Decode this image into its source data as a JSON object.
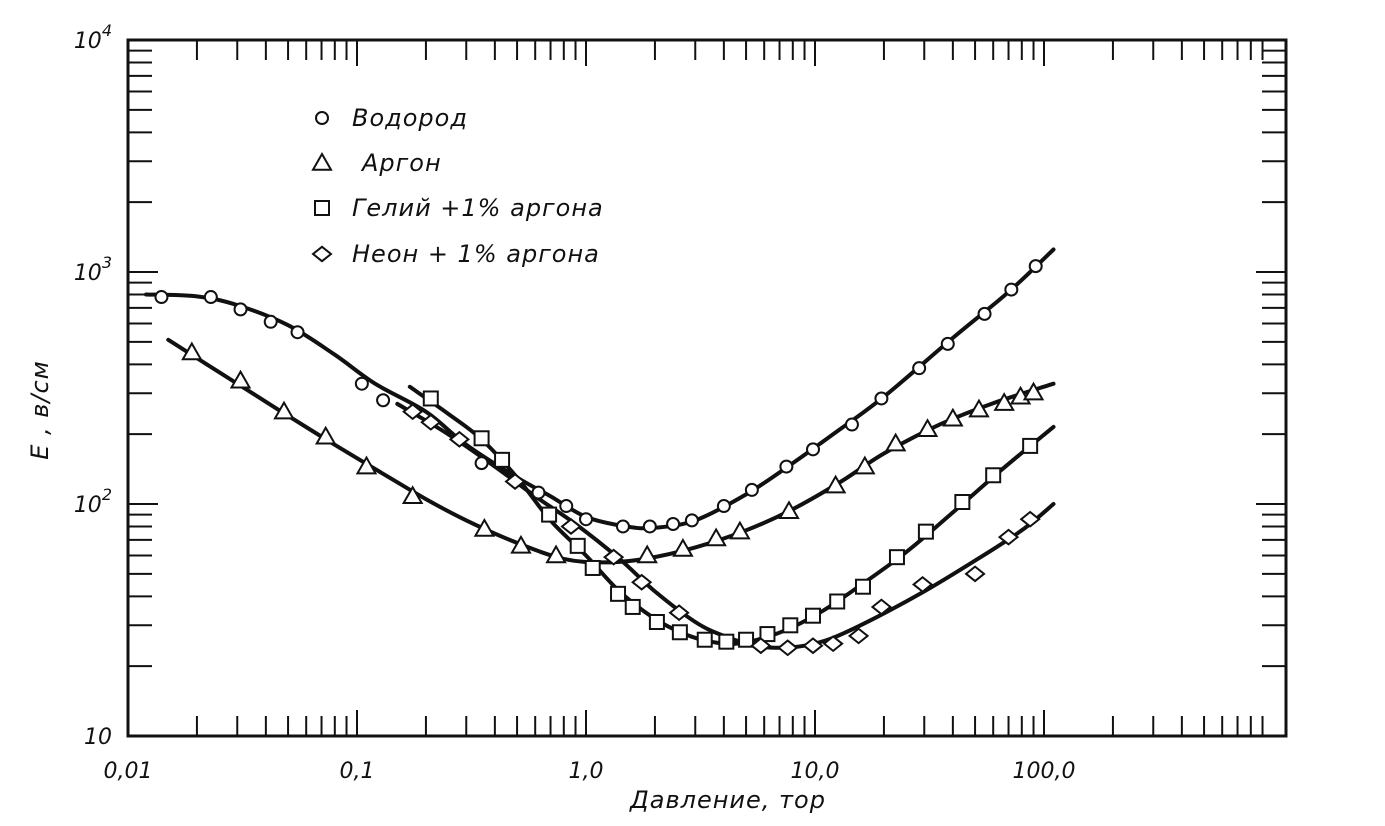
{
  "chart_data": {
    "type": "scatter",
    "title": "",
    "xlabel": "Давление, тор",
    "ylabel": "E , в/см",
    "xscale": "log",
    "yscale": "log",
    "xlim": [
      0.01,
      1000
    ],
    "ylim": [
      10,
      10000
    ],
    "grid": false,
    "legend_position": "top-left",
    "x_tick_labels": [
      {
        "value": 0.01,
        "label": "0,01"
      },
      {
        "value": 0.1,
        "label": "0,1"
      },
      {
        "value": 1,
        "label": "1,0"
      },
      {
        "value": 10,
        "label": "10,0"
      },
      {
        "value": 100,
        "label": "100,0"
      }
    ],
    "y_tick_labels": [
      {
        "value": 10,
        "label": "10",
        "exp": ""
      },
      {
        "value": 100,
        "label": "10",
        "exp": "2"
      },
      {
        "value": 1000,
        "label": "10",
        "exp": "3"
      },
      {
        "value": 10000,
        "label": "10",
        "exp": "4"
      }
    ],
    "series": [
      {
        "name": "Водород",
        "marker": "circle",
        "points": [
          [
            0.014,
            780
          ],
          [
            0.023,
            780
          ],
          [
            0.031,
            690
          ],
          [
            0.042,
            610
          ],
          [
            0.055,
            550
          ],
          [
            0.105,
            330
          ],
          [
            0.13,
            280
          ],
          [
            0.35,
            150
          ],
          [
            0.62,
            112
          ],
          [
            0.82,
            98
          ],
          [
            1.0,
            86
          ],
          [
            1.45,
            80
          ],
          [
            1.9,
            80
          ],
          [
            2.4,
            82
          ],
          [
            2.9,
            85
          ],
          [
            4.0,
            98
          ],
          [
            5.3,
            115
          ],
          [
            7.5,
            145
          ],
          [
            9.8,
            172
          ],
          [
            14.5,
            220
          ],
          [
            19.5,
            285
          ],
          [
            28.5,
            385
          ],
          [
            38.0,
            490
          ],
          [
            55.0,
            660
          ],
          [
            72.0,
            840
          ],
          [
            92.0,
            1060
          ]
        ],
        "curve": [
          [
            0.012,
            800
          ],
          [
            0.02,
            785
          ],
          [
            0.03,
            720
          ],
          [
            0.05,
            590
          ],
          [
            0.08,
            440
          ],
          [
            0.12,
            330
          ],
          [
            0.2,
            250
          ],
          [
            0.3,
            180
          ],
          [
            0.5,
            130
          ],
          [
            0.7,
            108
          ],
          [
            1.0,
            88
          ],
          [
            1.5,
            80
          ],
          [
            2.0,
            79
          ],
          [
            3.0,
            85
          ],
          [
            5.0,
            110
          ],
          [
            8.0,
            150
          ],
          [
            12.0,
            200
          ],
          [
            20.0,
            290
          ],
          [
            40.0,
            520
          ],
          [
            70.0,
            820
          ],
          [
            110.0,
            1250
          ]
        ]
      },
      {
        "name": "Аргон",
        "marker": "triangle",
        "points": [
          [
            0.019,
            450
          ],
          [
            0.031,
            340
          ],
          [
            0.048,
            250
          ],
          [
            0.073,
            195
          ],
          [
            0.11,
            145
          ],
          [
            0.175,
            108
          ],
          [
            0.36,
            78
          ],
          [
            0.52,
            66
          ],
          [
            0.74,
            60
          ],
          [
            1.85,
            60
          ],
          [
            2.65,
            64
          ],
          [
            3.7,
            71
          ],
          [
            4.7,
            76
          ],
          [
            7.7,
            93
          ],
          [
            12.3,
            120
          ],
          [
            16.5,
            145
          ],
          [
            22.5,
            182
          ],
          [
            31.0,
            210
          ],
          [
            40.0,
            233
          ],
          [
            52.0,
            255
          ],
          [
            67.0,
            272
          ],
          [
            79.0,
            290
          ],
          [
            90.0,
            302
          ]
        ],
        "curve": [
          [
            0.015,
            510
          ],
          [
            0.03,
            330
          ],
          [
            0.05,
            240
          ],
          [
            0.08,
            180
          ],
          [
            0.13,
            135
          ],
          [
            0.2,
            105
          ],
          [
            0.3,
            85
          ],
          [
            0.5,
            68
          ],
          [
            0.8,
            58
          ],
          [
            1.2,
            56
          ],
          [
            1.8,
            58
          ],
          [
            3.0,
            65
          ],
          [
            5.0,
            77
          ],
          [
            8.0,
            95
          ],
          [
            13.0,
            125
          ],
          [
            20.0,
            165
          ],
          [
            35.0,
            220
          ],
          [
            60.0,
            272
          ],
          [
            110.0,
            330
          ]
        ]
      },
      {
        "name": "Гелий +1% аргона",
        "marker": "square",
        "points": [
          [
            0.21,
            285
          ],
          [
            0.35,
            192
          ],
          [
            0.43,
            155
          ],
          [
            0.69,
            90
          ],
          [
            0.92,
            66
          ],
          [
            1.07,
            53
          ],
          [
            1.38,
            41
          ],
          [
            1.6,
            36
          ],
          [
            2.04,
            31
          ],
          [
            2.57,
            28
          ],
          [
            3.3,
            26
          ],
          [
            4.1,
            25.5
          ],
          [
            5.0,
            26
          ],
          [
            6.2,
            27.5
          ],
          [
            7.8,
            30
          ],
          [
            9.8,
            33
          ],
          [
            12.5,
            38
          ],
          [
            16.2,
            44
          ],
          [
            22.8,
            59
          ],
          [
            30.5,
            76
          ],
          [
            44.0,
            102
          ],
          [
            60.0,
            133
          ],
          [
            87.0,
            178
          ]
        ],
        "curve": [
          [
            0.17,
            320
          ],
          [
            0.25,
            245
          ],
          [
            0.35,
            190
          ],
          [
            0.5,
            130
          ],
          [
            0.7,
            85
          ],
          [
            1.0,
            60
          ],
          [
            1.4,
            42
          ],
          [
            2.0,
            32
          ],
          [
            2.7,
            27.5
          ],
          [
            3.5,
            25.5
          ],
          [
            4.5,
            25
          ],
          [
            6.0,
            26.5
          ],
          [
            8.0,
            29.5
          ],
          [
            11.0,
            35
          ],
          [
            15.0,
            43
          ],
          [
            25.0,
            62
          ],
          [
            40.0,
            92
          ],
          [
            65.0,
            140
          ],
          [
            110.0,
            215
          ]
        ]
      },
      {
        "name": "Неон + 1% аргона",
        "marker": "diamond",
        "points": [
          [
            0.175,
            250
          ],
          [
            0.21,
            225
          ],
          [
            0.28,
            190
          ],
          [
            0.49,
            125
          ],
          [
            0.86,
            80
          ],
          [
            1.32,
            59
          ],
          [
            1.75,
            46
          ],
          [
            2.55,
            34
          ],
          [
            5.8,
            24.5
          ],
          [
            7.6,
            24
          ],
          [
            9.8,
            24.5
          ],
          [
            12.0,
            25
          ],
          [
            15.5,
            27
          ],
          [
            19.5,
            36
          ],
          [
            29.5,
            45
          ],
          [
            50.0,
            50
          ],
          [
            70.0,
            72
          ],
          [
            87.0,
            86
          ]
        ],
        "curve": [
          [
            0.15,
            270
          ],
          [
            0.25,
            200
          ],
          [
            0.4,
            145
          ],
          [
            0.6,
            108
          ],
          [
            0.9,
            82
          ],
          [
            1.4,
            58
          ],
          [
            2.0,
            42
          ],
          [
            3.0,
            31
          ],
          [
            4.0,
            27
          ],
          [
            5.5,
            24.5
          ],
          [
            7.0,
            24
          ],
          [
            9.0,
            24.5
          ],
          [
            12.0,
            26.5
          ],
          [
            18.0,
            32
          ],
          [
            30.0,
            42
          ],
          [
            50.0,
            57
          ],
          [
            80.0,
            77
          ],
          [
            110.0,
            100
          ]
        ]
      }
    ]
  }
}
